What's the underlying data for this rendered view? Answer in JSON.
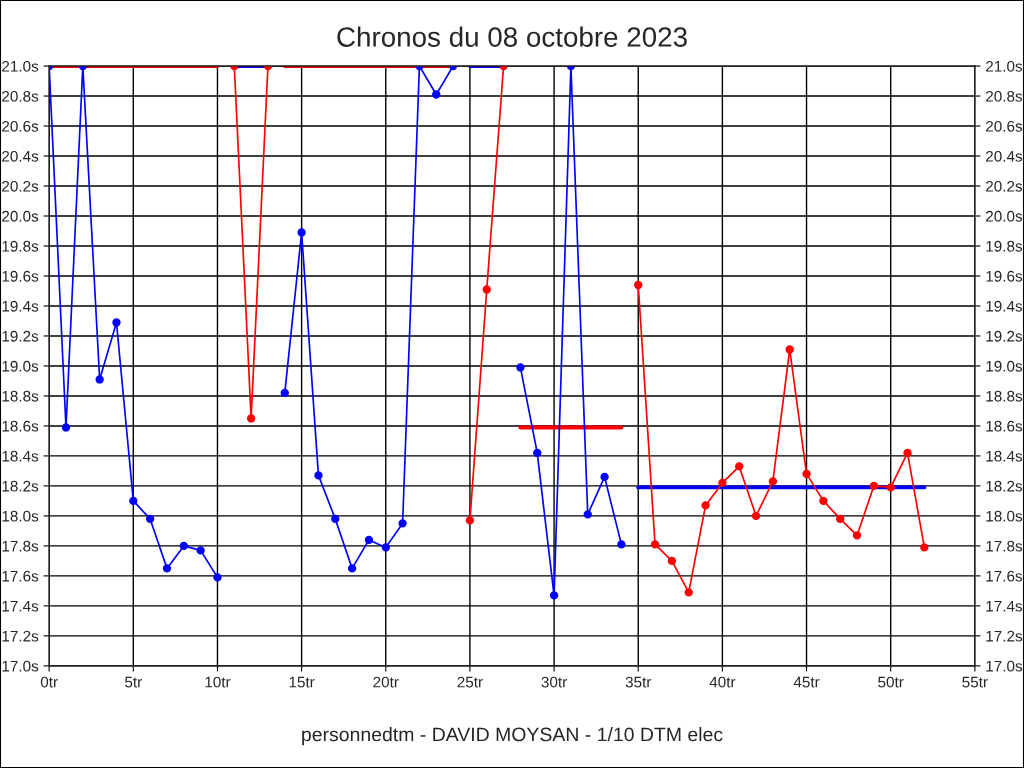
{
  "chart_data": {
    "type": "line",
    "title": "Chronos du 08 octobre 2023",
    "annotations": [
      "personnedtm - DAVID MOYSAN - 1/10 DTM elec"
    ],
    "xlim": [
      0,
      55
    ],
    "xticks": [
      {
        "value": 0,
        "label": "0tr"
      },
      {
        "value": 5,
        "label": "5tr"
      },
      {
        "value": 10,
        "label": "10tr"
      },
      {
        "value": 15,
        "label": "15tr"
      },
      {
        "value": 20,
        "label": "20tr"
      },
      {
        "value": 25,
        "label": "25tr"
      },
      {
        "value": 30,
        "label": "30tr"
      },
      {
        "value": 35,
        "label": "35tr"
      },
      {
        "value": 40,
        "label": "40tr"
      },
      {
        "value": 45,
        "label": "45tr"
      },
      {
        "value": 50,
        "label": "50tr"
      },
      {
        "value": 55,
        "label": "55tr"
      }
    ],
    "ylim": [
      17.0,
      21.0
    ],
    "yticks": [
      {
        "value": 17.0,
        "label": "17.0s"
      },
      {
        "value": 17.2,
        "label": "17.2s"
      },
      {
        "value": 17.4,
        "label": "17.4s"
      },
      {
        "value": 17.6,
        "label": "17.6s"
      },
      {
        "value": 17.8,
        "label": "17.8s"
      },
      {
        "value": 18.0,
        "label": "18.0s"
      },
      {
        "value": 18.2,
        "label": "18.2s"
      },
      {
        "value": 18.4,
        "label": "18.4s"
      },
      {
        "value": 18.6,
        "label": "18.6s"
      },
      {
        "value": 18.8,
        "label": "18.8s"
      },
      {
        "value": 19.0,
        "label": "19.0s"
      },
      {
        "value": 19.2,
        "label": "19.2s"
      },
      {
        "value": 19.4,
        "label": "19.4s"
      },
      {
        "value": 19.6,
        "label": "19.6s"
      },
      {
        "value": 19.8,
        "label": "19.8s"
      },
      {
        "value": 20.0,
        "label": "20.0s"
      },
      {
        "value": 20.2,
        "label": "20.2s"
      },
      {
        "value": 20.4,
        "label": "20.4s"
      },
      {
        "value": 20.6,
        "label": "20.6s"
      },
      {
        "value": 20.8,
        "label": "20.8s"
      },
      {
        "value": 21.0,
        "label": "21.0s"
      }
    ],
    "y2lim": [
      17.0,
      21.0
    ],
    "y2ticks": [
      {
        "value": 17.0,
        "label": "17.0s"
      },
      {
        "value": 17.2,
        "label": "17.2s"
      },
      {
        "value": 17.4,
        "label": "17.4s"
      },
      {
        "value": 17.6,
        "label": "17.6s"
      },
      {
        "value": 17.8,
        "label": "17.8s"
      },
      {
        "value": 18.0,
        "label": "18.0s"
      },
      {
        "value": 18.2,
        "label": "18.2s"
      },
      {
        "value": 18.4,
        "label": "18.4s"
      },
      {
        "value": 18.6,
        "label": "18.6s"
      },
      {
        "value": 18.8,
        "label": "18.8s"
      },
      {
        "value": 19.0,
        "label": "19.0s"
      },
      {
        "value": 19.2,
        "label": "19.2s"
      },
      {
        "value": 19.4,
        "label": "19.4s"
      },
      {
        "value": 19.6,
        "label": "19.6s"
      },
      {
        "value": 19.8,
        "label": "19.8s"
      },
      {
        "value": 20.0,
        "label": "20.0s"
      },
      {
        "value": 20.2,
        "label": "20.2s"
      },
      {
        "value": 20.4,
        "label": "20.4s"
      },
      {
        "value": 20.6,
        "label": "20.6s"
      },
      {
        "value": 20.8,
        "label": "20.8s"
      },
      {
        "value": 21.0,
        "label": "21.0s"
      }
    ],
    "grid": true,
    "legend": false,
    "series": [
      {
        "color": "#ff0000",
        "marker": "none",
        "x": [
          0,
          10
        ],
        "values": [
          21.0,
          21.0
        ]
      },
      {
        "color": "#0000ff",
        "marker": "none",
        "x": [
          11,
          13
        ],
        "values": [
          21.0,
          21.0
        ]
      },
      {
        "color": "#ff0000",
        "marker": "none",
        "x": [
          14,
          24
        ],
        "values": [
          21.0,
          21.0
        ]
      },
      {
        "color": "#0000ff",
        "marker": "none",
        "x": [
          25,
          27
        ],
        "values": [
          21.0,
          21.0
        ]
      },
      {
        "color": "#ff0000",
        "marker": "none",
        "x": [
          28,
          34
        ],
        "values": [
          18.59,
          18.59
        ]
      },
      {
        "color": "#0000ff",
        "marker": "none",
        "x": [
          35,
          52
        ],
        "values": [
          18.19,
          18.19
        ]
      },
      {
        "color": "#0000ff",
        "marker": "circle",
        "x": [
          0,
          1,
          2,
          3,
          4,
          5,
          6,
          7,
          8,
          9,
          10
        ],
        "values": [
          21.0,
          18.59,
          21.0,
          18.91,
          19.29,
          18.1,
          17.98,
          17.65,
          17.8,
          17.77,
          17.59
        ]
      },
      {
        "color": "#ff0000",
        "marker": "circle",
        "x": [
          11,
          12,
          13
        ],
        "values": [
          21.0,
          18.65,
          21.0
        ]
      },
      {
        "color": "#0000ff",
        "marker": "circle",
        "x": [
          14,
          15,
          16,
          17,
          18,
          19,
          20,
          21,
          22,
          23,
          24
        ],
        "values": [
          18.82,
          19.89,
          18.27,
          17.98,
          17.65,
          17.84,
          17.79,
          17.95,
          21.0,
          20.81,
          21.0
        ]
      },
      {
        "color": "#ff0000",
        "marker": "circle",
        "x": [
          25,
          26,
          27
        ],
        "values": [
          17.97,
          19.51,
          21.0
        ]
      },
      {
        "color": "#0000ff",
        "marker": "circle",
        "x": [
          28,
          29,
          30,
          31,
          32,
          33,
          34
        ],
        "values": [
          18.99,
          18.42,
          17.47,
          21.0,
          18.01,
          18.26,
          17.81
        ]
      },
      {
        "color": "#ff0000",
        "marker": "circle",
        "x": [
          35,
          36,
          37,
          38,
          39,
          40,
          41,
          42,
          43,
          44,
          45,
          46,
          47,
          48,
          49,
          50,
          51,
          52
        ],
        "values": [
          19.54,
          17.81,
          17.7,
          17.49,
          18.07,
          18.22,
          18.33,
          18.0,
          18.23,
          19.11,
          18.28,
          18.1,
          17.98,
          17.87,
          18.2,
          18.19,
          18.42,
          17.79
        ]
      }
    ]
  }
}
